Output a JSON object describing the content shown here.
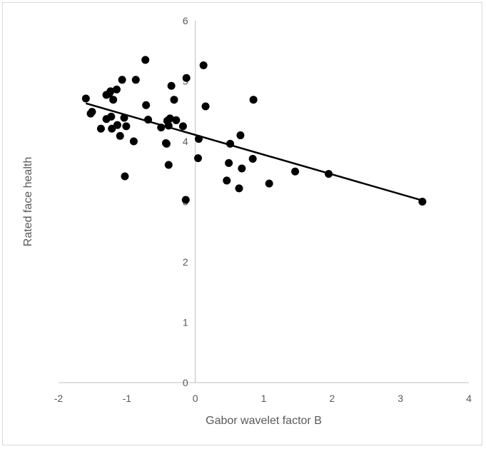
{
  "chart_data": {
    "type": "scatter",
    "title": "",
    "xlabel": "Gabor wavelet factor B",
    "ylabel": "Rated face health",
    "xlim": [
      -2,
      4
    ],
    "ylim": [
      0,
      6
    ],
    "x_ticks": [
      -2,
      -1,
      0,
      1,
      2,
      3,
      4
    ],
    "y_ticks": [
      0,
      1,
      2,
      3,
      4,
      5,
      6
    ],
    "grid": false,
    "legend": "none",
    "colors": {
      "points": "#000000",
      "trendline": "#000000",
      "axis": "#bfbfbf",
      "text": "#595959"
    },
    "points": [
      [
        -1.6,
        4.71
      ],
      [
        -1.53,
        4.46
      ],
      [
        -1.51,
        4.49
      ],
      [
        -1.38,
        4.21
      ],
      [
        -1.3,
        4.77
      ],
      [
        -1.3,
        4.37
      ],
      [
        -1.26,
        4.79
      ],
      [
        -1.24,
        4.83
      ],
      [
        -1.23,
        4.41
      ],
      [
        -1.22,
        4.21
      ],
      [
        -1.2,
        4.69
      ],
      [
        -1.15,
        4.86
      ],
      [
        -1.14,
        4.27
      ],
      [
        -1.1,
        4.09
      ],
      [
        -1.07,
        5.02
      ],
      [
        -1.04,
        4.39
      ],
      [
        -1.03,
        3.42
      ],
      [
        -1.01,
        4.25
      ],
      [
        -0.9,
        4.0
      ],
      [
        -0.87,
        5.02
      ],
      [
        -0.73,
        5.35
      ],
      [
        -0.72,
        4.6
      ],
      [
        -0.69,
        4.36
      ],
      [
        -0.5,
        4.23
      ],
      [
        -0.43,
        3.97
      ],
      [
        -0.42,
        3.96
      ],
      [
        -0.41,
        4.34
      ],
      [
        -0.39,
        3.61
      ],
      [
        -0.39,
        4.26
      ],
      [
        -0.37,
        4.38
      ],
      [
        -0.35,
        4.92
      ],
      [
        -0.31,
        4.69
      ],
      [
        -0.28,
        4.35
      ],
      [
        -0.18,
        4.25
      ],
      [
        -0.14,
        3.03
      ],
      [
        -0.13,
        5.05
      ],
      [
        0.04,
        3.72
      ],
      [
        0.05,
        4.04
      ],
      [
        0.12,
        5.26
      ],
      [
        0.15,
        4.58
      ],
      [
        0.46,
        3.35
      ],
      [
        0.49,
        3.64
      ],
      [
        0.51,
        3.96
      ],
      [
        0.64,
        3.22
      ],
      [
        0.66,
        4.1
      ],
      [
        0.68,
        3.55
      ],
      [
        0.84,
        3.71
      ],
      [
        0.85,
        4.69
      ],
      [
        1.08,
        3.3
      ],
      [
        1.46,
        3.5
      ],
      [
        1.95,
        3.46
      ],
      [
        3.32,
        3.0
      ]
    ],
    "trendline": {
      "type": "linear",
      "x": [
        -1.6,
        3.32
      ],
      "y": [
        4.63,
        3.02
      ]
    }
  }
}
